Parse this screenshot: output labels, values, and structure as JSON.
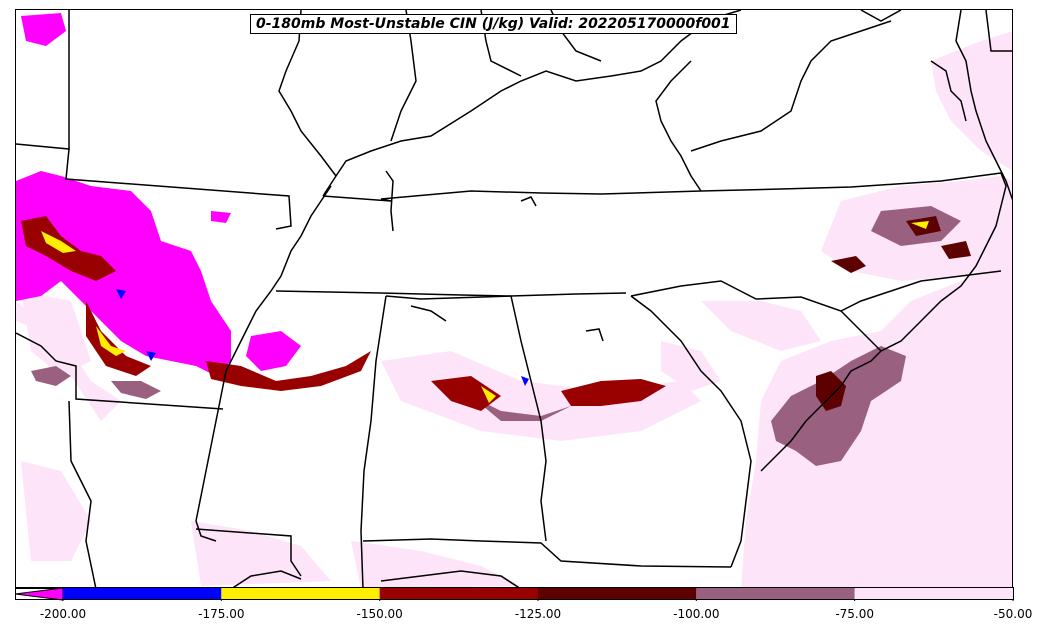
{
  "title": "0-180mb Most-Unstable CIN (J/kg) Valid: 202205170000f001",
  "colorbar": {
    "levels": [
      -200,
      -175,
      -150,
      -125,
      -100,
      -75,
      -50
    ],
    "tick_labels": [
      "-200.00",
      "-175.00",
      "-150.00",
      "-125.00",
      "-100.00",
      "-75.00",
      "-50.00"
    ],
    "colors": [
      "#0000ff",
      "#ffee00",
      "#990000",
      "#5c0000",
      "#9a6080",
      "#fde4f8"
    ],
    "under_color": "#ff00ff",
    "extend": "min"
  },
  "palette": {
    "magenta": "#ff00ff",
    "blue": "#0000ff",
    "yellow": "#ffee00",
    "red": "#990000",
    "darkred": "#5c0000",
    "mauve": "#9a6080",
    "pink": "#fde4f8",
    "border": "#000000"
  }
}
